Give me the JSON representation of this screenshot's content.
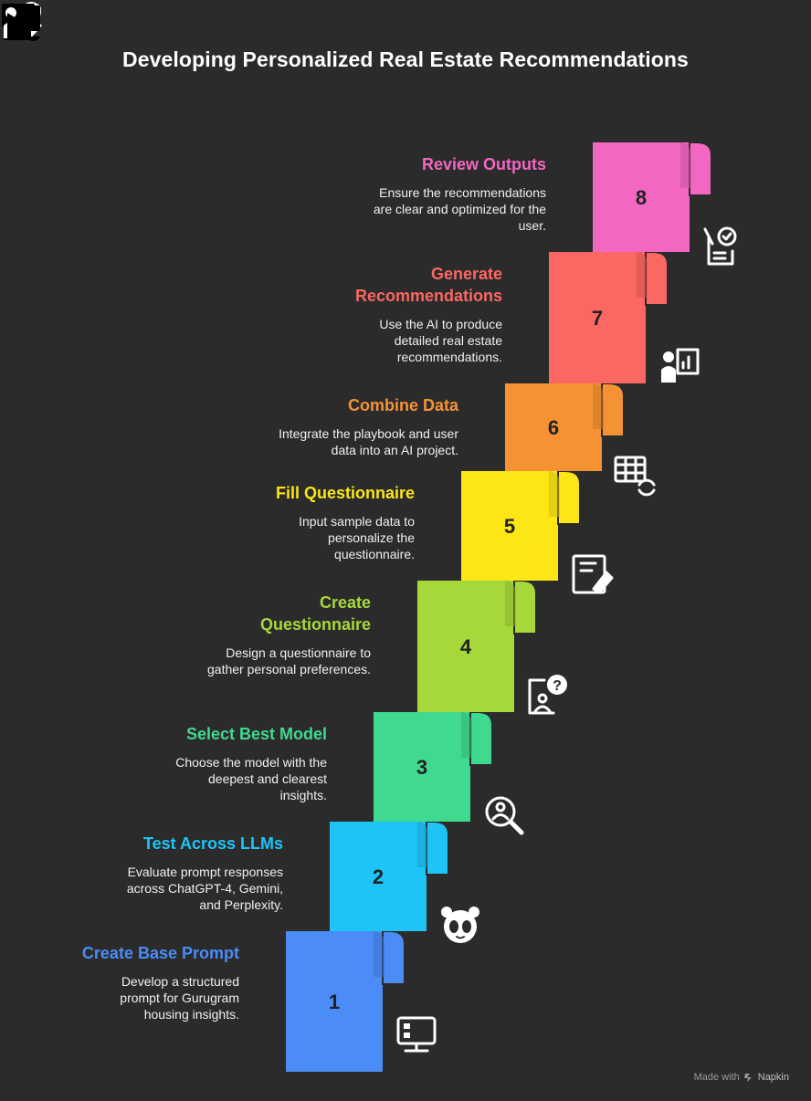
{
  "title": "Developing Personalized Real Estate Recommendations",
  "footer": {
    "made_with": "Made with",
    "brand": "Napkin"
  },
  "steps": [
    {
      "number": "1",
      "title": "Create Base Prompt",
      "description": "Develop a structured prompt for Gurugram housing insights.",
      "color": "#4b8cf7",
      "icon": "computer-icon"
    },
    {
      "number": "2",
      "title": "Test Across LLMs",
      "description": "Evaluate prompt responses across ChatGPT-4, Gemini, and Perplexity.",
      "color": "#1fc4f7",
      "icon": "panda-face-icon"
    },
    {
      "number": "3",
      "title": "Select Best Model",
      "description": "Choose the model with the deepest and clearest insights.",
      "color": "#3fd98f",
      "icon": "magnify-person-icon"
    },
    {
      "number": "4",
      "title": "Create Questionnaire",
      "description": "Design a questionnaire to gather personal preferences.",
      "color": "#a6d83a",
      "icon": "person-question-icon"
    },
    {
      "number": "5",
      "title": "Fill Questionnaire",
      "description": "Input sample data to personalize the questionnaire.",
      "color": "#fce616",
      "icon": "form-pen-icon"
    },
    {
      "number": "6",
      "title": "Combine Data",
      "description": "Integrate the playbook and user data into an AI project.",
      "color": "#f59234",
      "icon": "table-sync-icon"
    },
    {
      "number": "7",
      "title": "Generate Recommendations",
      "description": "Use the AI to produce detailed real estate recommendations.",
      "color": "#fb6762",
      "icon": "presenter-chart-icon"
    },
    {
      "number": "8",
      "title": "Review Outputs",
      "description": "Ensure the recommendations are clear and optimized for the user.",
      "color": "#f167c1",
      "icon": "clipboard-check-icon"
    }
  ]
}
